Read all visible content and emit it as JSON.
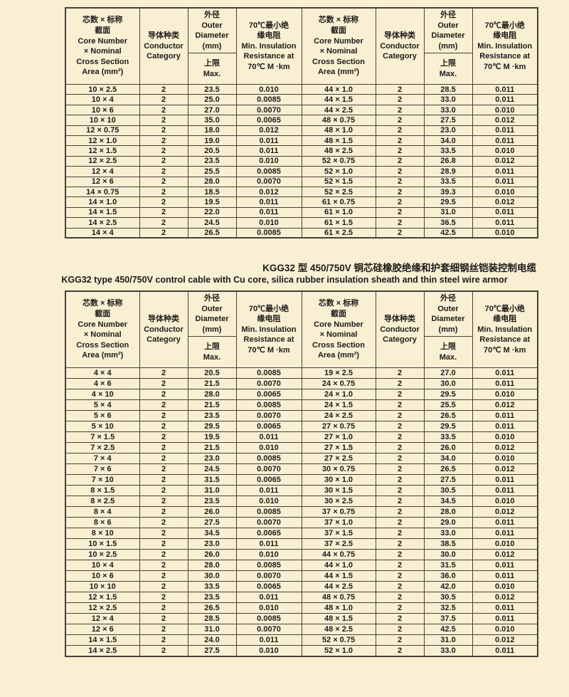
{
  "page": {
    "background": "#f9efd3",
    "title_zh": "KGG32 型 450/750V 铜芯硅橡胶绝缘和护套细钢丝铠装控制电缆",
    "title_en": "KGG32 type 450/750V control cable with Cu core, silica rubber insulation sheath and thin steel wire armor"
  },
  "header": {
    "col_core": "芯数 × 标称\n截面\nCore Number\n× Nominal\nCross Section\nArea  (mm²)",
    "col_conductor": "导体种类\nConductor\nCategory",
    "col_diameter": "外径\nOuter\nDiameter\n(mm)",
    "col_diameter_sub": "上限\nMax.",
    "col_resistance": "70℃最小绝\n缘电阻\nMin. Insulation\nResistance at\n70℃  M  ·km"
  },
  "table_top": {
    "rows_left": [
      [
        "10 × 2.5",
        "2",
        "23.5",
        "0.010"
      ],
      [
        "10 × 4",
        "2",
        "25.0",
        "0.0085"
      ],
      [
        "10 × 6",
        "2",
        "27.0",
        "0.0070"
      ],
      [
        "10 × 10",
        "2",
        "35.0",
        "0.0065"
      ],
      [
        "12 × 0.75",
        "2",
        "18.0",
        "0.012"
      ],
      [
        "12 × 1.0",
        "2",
        "19.0",
        "0.011"
      ],
      [
        "12 × 1.5",
        "2",
        "20.5",
        "0.011"
      ],
      [
        "12 × 2.5",
        "2",
        "23.5",
        "0.010"
      ],
      [
        "12 × 4",
        "2",
        "25.5",
        "0.0085"
      ],
      [
        "12 × 6",
        "2",
        "28.0",
        "0.0070"
      ],
      [
        "14 × 0.75",
        "2",
        "18.5",
        "0.012"
      ],
      [
        "14 × 1.0",
        "2",
        "19.5",
        "0.011"
      ],
      [
        "14 × 1.5",
        "2",
        "22.0",
        "0.011"
      ],
      [
        "14 × 2.5",
        "2",
        "24.5",
        "0.010"
      ],
      [
        "14 × 4",
        "2",
        "26.5",
        "0.0085"
      ]
    ],
    "rows_right": [
      [
        "44 × 1.0",
        "2",
        "28.5",
        "0.011"
      ],
      [
        "44 × 1.5",
        "2",
        "33.0",
        "0.011"
      ],
      [
        "44 × 2.5",
        "2",
        "33.0",
        "0.010"
      ],
      [
        "48 × 0.75",
        "2",
        "27.5",
        "0.012"
      ],
      [
        "48 × 1.0",
        "2",
        "23.0",
        "0.011"
      ],
      [
        "48 × 1.5",
        "2",
        "34.0",
        "0.011"
      ],
      [
        "48 × 2.5",
        "2",
        "33.5",
        "0.010"
      ],
      [
        "52 × 0.75",
        "2",
        "26.8",
        "0.012"
      ],
      [
        "52 × 1.0",
        "2",
        "28.9",
        "0.011"
      ],
      [
        "52 × 1.5",
        "2",
        "33.5",
        "0.011"
      ],
      [
        "52 × 2.5",
        "2",
        "39.3",
        "0.010"
      ],
      [
        "61 × 0.75",
        "2",
        "29.5",
        "0.012"
      ],
      [
        "61 × 1.0",
        "2",
        "31.0",
        "0.011"
      ],
      [
        "61 × 1.5",
        "2",
        "36.5",
        "0.011"
      ],
      [
        "61 × 2.5",
        "2",
        "42.5",
        "0.010"
      ]
    ]
  },
  "table_bottom": {
    "rows_left": [
      [
        "4 × 4",
        "2",
        "20.5",
        "0.0085"
      ],
      [
        "4 × 6",
        "2",
        "21.5",
        "0.0070"
      ],
      [
        "4 × 10",
        "2",
        "28.0",
        "0.0065"
      ],
      [
        "5 × 4",
        "2",
        "21.5",
        "0.0085"
      ],
      [
        "5 × 6",
        "2",
        "23.5",
        "0.0070"
      ],
      [
        "5 × 10",
        "2",
        "29.5",
        "0.0065"
      ],
      [
        "7 × 1.5",
        "2",
        "19.5",
        "0.011"
      ],
      [
        "7 × 2.5",
        "2",
        "21.5",
        "0.010"
      ],
      [
        "7 × 4",
        "2",
        "23.0",
        "0.0085"
      ],
      [
        "7 × 6",
        "2",
        "24.5",
        "0.0070"
      ],
      [
        "7 × 10",
        "2",
        "31.5",
        "0.0065"
      ],
      [
        "8 × 1.5",
        "2",
        "31.0",
        "0.011"
      ],
      [
        "8 × 2.5",
        "2",
        "23.5",
        "0.010"
      ],
      [
        "8 × 4",
        "2",
        "26.0",
        "0.0085"
      ],
      [
        "8 × 6",
        "2",
        "27.5",
        "0.0070"
      ],
      [
        "8 × 10",
        "2",
        "34.5",
        "0.0065"
      ],
      [
        "10 × 1.5",
        "2",
        "23.0",
        "0.011"
      ],
      [
        "10 × 2.5",
        "2",
        "26.0",
        "0.010"
      ],
      [
        "10 × 4",
        "2",
        "28.0",
        "0.0085"
      ],
      [
        "10 × 6",
        "2",
        "30.0",
        "0.0070"
      ],
      [
        "10 × 10",
        "2",
        "33.5",
        "0.0065"
      ],
      [
        "12 × 1.5",
        "2",
        "23.5",
        "0.011"
      ],
      [
        "12 × 2.5",
        "2",
        "26.5",
        "0.010"
      ],
      [
        "12 × 4",
        "2",
        "28.5",
        "0.0085"
      ],
      [
        "12 × 6",
        "2",
        "31.0",
        "0.0070"
      ],
      [
        "14 × 1.5",
        "2",
        "24.0",
        "0.011"
      ],
      [
        "14 × 2.5",
        "2",
        "27.5",
        "0.010"
      ]
    ],
    "rows_right": [
      [
        "19 × 2.5",
        "2",
        "27.0",
        "0.011"
      ],
      [
        "24 × 0.75",
        "2",
        "30.0",
        "0.011"
      ],
      [
        "24 × 1.0",
        "2",
        "29.5",
        "0.010"
      ],
      [
        "24 × 1.5",
        "2",
        "25.5",
        "0.012"
      ],
      [
        "24 × 2.5",
        "2",
        "26.5",
        "0.011"
      ],
      [
        "27 × 0.75",
        "2",
        "29.5",
        "0.011"
      ],
      [
        "27 × 1.0",
        "2",
        "33.5",
        "0.010"
      ],
      [
        "27 × 1.5",
        "2",
        "26.0",
        "0.012"
      ],
      [
        "27 × 2.5",
        "2",
        "34.0",
        "0.010"
      ],
      [
        "30 × 0.75",
        "2",
        "26.5",
        "0.012"
      ],
      [
        "30 × 1.0",
        "2",
        "27.5",
        "0.011"
      ],
      [
        "30 × 1.5",
        "2",
        "30.5",
        "0.011"
      ],
      [
        "30 × 2.5",
        "2",
        "34.5",
        "0.010"
      ],
      [
        "37 × 0.75",
        "2",
        "28.0",
        "0.012"
      ],
      [
        "37 × 1.0",
        "2",
        "29.0",
        "0.011"
      ],
      [
        "37 × 1.5",
        "2",
        "33.0",
        "0.011"
      ],
      [
        "37 × 2.5",
        "2",
        "38.5",
        "0.010"
      ],
      [
        "44 × 0.75",
        "2",
        "30.0",
        "0.012"
      ],
      [
        "44 × 1.0",
        "2",
        "31.5",
        "0.011"
      ],
      [
        "44 × 1.5",
        "2",
        "36.0",
        "0.011"
      ],
      [
        "44 × 2.5",
        "2",
        "42.0",
        "0.010"
      ],
      [
        "48 × 0.75",
        "2",
        "30.5",
        "0.012"
      ],
      [
        "48 × 1.0",
        "2",
        "32.5",
        "0.011"
      ],
      [
        "48 × 1.5",
        "2",
        "37.5",
        "0.011"
      ],
      [
        "48 × 2.5",
        "2",
        "42.5",
        "0.010"
      ],
      [
        "52 × 0.75",
        "2",
        "31.0",
        "0.012"
      ],
      [
        "52 × 1.0",
        "2",
        "33.0",
        "0.011"
      ]
    ]
  }
}
